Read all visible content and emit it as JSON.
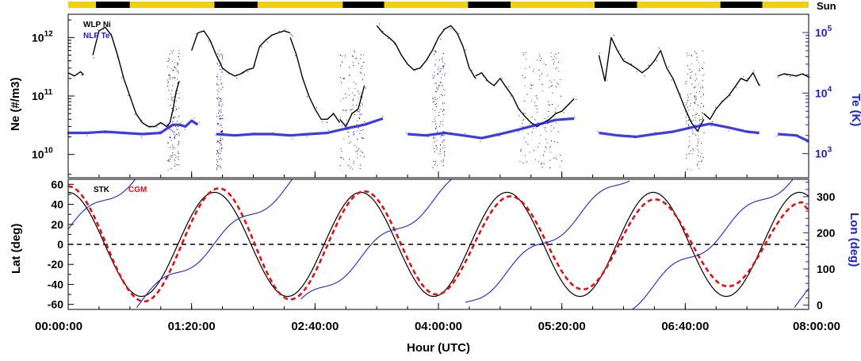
{
  "colors": {
    "ni": "#000000",
    "te": "#1a1adb",
    "stk": "#000000",
    "cgm": "#e01010",
    "lon": "#2222cc",
    "sun_day": "#f2d10a",
    "sun_night": "#000000"
  },
  "sun_bar": {
    "label": "Sun",
    "segments": [
      {
        "start": 0.0,
        "end": 0.45,
        "state": "day"
      },
      {
        "start": 0.45,
        "end": 1.0,
        "state": "night"
      },
      {
        "start": 1.0,
        "end": 2.37,
        "state": "day"
      },
      {
        "start": 2.37,
        "end": 3.07,
        "state": "night"
      },
      {
        "start": 3.07,
        "end": 4.45,
        "state": "day"
      },
      {
        "start": 4.45,
        "end": 5.12,
        "state": "night"
      },
      {
        "start": 5.12,
        "end": 6.48,
        "state": "day"
      },
      {
        "start": 6.48,
        "end": 7.17,
        "state": "night"
      },
      {
        "start": 7.17,
        "end": 8.53,
        "state": "day"
      },
      {
        "start": 8.53,
        "end": 9.22,
        "state": "night"
      },
      {
        "start": 9.22,
        "end": 10.57,
        "state": "day"
      },
      {
        "start": 10.57,
        "end": 11.25,
        "state": "night"
      },
      {
        "start": 11.25,
        "end": 12.0,
        "state": "day"
      }
    ]
  },
  "chart_data": [
    {
      "type": "scatter",
      "ylabel": "Ne (#/m3)",
      "y2label": "Te (K)",
      "yscale": "log",
      "ylim": [
        4000000000.0,
        2500000000000.0
      ],
      "y2lim": [
        400,
        200000
      ],
      "y_ticks": [
        {
          "exp": "10",
          "pow": "10",
          "value": 10000000000.0
        },
        {
          "exp": "10",
          "pow": "11",
          "value": 100000000000.0
        },
        {
          "exp": "10",
          "pow": "12",
          "value": 1000000000000.0
        }
      ],
      "y2_ticks": [
        {
          "exp": "10",
          "pow": "3",
          "value": 1000
        },
        {
          "exp": "10",
          "pow": "4",
          "value": 10000
        },
        {
          "exp": "10",
          "pow": "5",
          "value": 100000
        }
      ],
      "legend": [
        "WLP Ni",
        "NLP Te"
      ],
      "series": [
        {
          "name": "WLP Ni",
          "axis": "left",
          "color": "#000000",
          "segments": [
            {
              "x": [
                0.0,
                0.1,
                0.2,
                0.25
              ],
              "y": [
                250000000000.0,
                220000000000.0,
                260000000000.0,
                230000000000.0
              ]
            },
            {
              "x": [
                0.4,
                0.5,
                0.6,
                0.7,
                0.8,
                0.9,
                1.0,
                1.1,
                1.2,
                1.3,
                1.4,
                1.5,
                1.6,
                1.65,
                1.7,
                1.75,
                1.8
              ],
              "y": [
                500000000000.0,
                1300000000000.0,
                1500000000000.0,
                1100000000000.0,
                500000000000.0,
                200000000000.0,
                100000000000.0,
                50000000000.0,
                35000000000.0,
                30000000000.0,
                30000000000.0,
                35000000000.0,
                30000000000.0,
                35000000000.0,
                60000000000.0,
                120000000000.0,
                180000000000.0
              ]
            },
            {
              "x": [
                2.0,
                2.1,
                2.2,
                2.3,
                2.4,
                2.5,
                2.6,
                2.7,
                2.8,
                2.9,
                3.0,
                3.1,
                3.2,
                3.3,
                3.4,
                3.5,
                3.6
              ],
              "y": [
                600000000000.0,
                1200000000000.0,
                1300000000000.0,
                900000000000.0,
                500000000000.0,
                300000000000.0,
                250000000000.0,
                220000000000.0,
                240000000000.0,
                280000000000.0,
                300000000000.0,
                700000000000.0,
                900000000000.0,
                1100000000000.0,
                1200000000000.0,
                1300000000000.0,
                1200000000000.0
              ]
            },
            {
              "x": [
                3.6,
                3.7,
                3.8,
                3.9,
                4.0,
                4.1,
                4.2,
                4.3,
                4.4
              ],
              "y": [
                1000000000000.0,
                500000000000.0,
                200000000000.0,
                100000000000.0,
                60000000000.0,
                40000000000.0,
                40000000000.0,
                50000000000.0,
                35000000000.0
              ]
            },
            {
              "x": [
                4.4,
                4.5,
                4.6,
                4.7,
                4.8
              ],
              "y": [
                40000000000.0,
                30000000000.0,
                50000000000.0,
                60000000000.0,
                150000000000.0
              ]
            },
            {
              "x": [
                5.0,
                5.1,
                5.2,
                5.3,
                5.4,
                5.5,
                5.6,
                5.7,
                5.8,
                5.9,
                6.0,
                6.1,
                6.2,
                6.3,
                6.4,
                6.5,
                6.6
              ],
              "y": [
                1600000000000.0,
                1200000000000.0,
                1000000000000.0,
                800000000000.0,
                500000000000.0,
                350000000000.0,
                280000000000.0,
                300000000000.0,
                400000000000.0,
                600000000000.0,
                1000000000000.0,
                1400000000000.0,
                1600000000000.0,
                1200000000000.0,
                700000000000.0,
                300000000000.0,
                200000000000.0
              ]
            },
            {
              "x": [
                6.6,
                6.7,
                6.8,
                6.9,
                7.0,
                7.1,
                7.2,
                7.3,
                7.4,
                7.5,
                7.6,
                7.7,
                7.8,
                7.9,
                8.0,
                8.1,
                8.2
              ],
              "y": [
                220000000000.0,
                250000000000.0,
                180000000000.0,
                150000000000.0,
                200000000000.0,
                140000000000.0,
                100000000000.0,
                60000000000.0,
                45000000000.0,
                35000000000.0,
                30000000000.0,
                35000000000.0,
                40000000000.0,
                50000000000.0,
                55000000000.0,
                70000000000.0,
                90000000000.0
              ]
            },
            {
              "x": [
                8.6,
                8.7,
                8.8,
                8.9,
                9.0,
                9.1,
                9.2,
                9.3,
                9.4,
                9.5,
                9.6,
                9.7,
                9.8,
                9.9,
                10.0,
                10.1,
                10.2,
                10.3
              ],
              "y": [
                500000000000.0,
                180000000000.0,
                1000000000000.0,
                600000000000.0,
                400000000000.0,
                350000000000.0,
                300000000000.0,
                250000000000.0,
                300000000000.0,
                400000000000.0,
                600000000000.0,
                300000000000.0,
                200000000000.0,
                110000000000.0,
                60000000000.0,
                35000000000.0,
                25000000000.0,
                40000000000.0
              ]
            },
            {
              "x": [
                10.3,
                10.4,
                10.5,
                10.6,
                10.7,
                10.8,
                10.9,
                11.0,
                11.1,
                11.2
              ],
              "y": [
                50000000000.0,
                40000000000.0,
                60000000000.0,
                80000000000.0,
                100000000000.0,
                140000000000.0,
                200000000000.0,
                180000000000.0,
                250000000000.0,
                150000000000.0
              ]
            },
            {
              "x": [
                11.5,
                11.6,
                11.7,
                11.8,
                11.9,
                12.0
              ],
              "y": [
                220000000000.0,
                240000000000.0,
                230000000000.0,
                220000000000.0,
                240000000000.0,
                210000000000.0
              ]
            }
          ]
        },
        {
          "name": "NLP Te",
          "axis": "right",
          "color": "#1a1adb",
          "segments": [
            {
              "x": [
                0.0,
                0.3,
                0.6,
                0.9,
                1.2,
                1.5,
                1.6,
                1.7,
                1.8,
                1.9,
                2.0,
                2.1
              ],
              "y": [
                2200,
                2200,
                2300,
                2200,
                2100,
                2200,
                2600,
                3000,
                3000,
                2800,
                3500,
                3000
              ]
            },
            {
              "x": [
                2.4,
                2.7,
                3.0,
                3.3,
                3.6,
                3.9,
                4.2,
                4.5,
                4.8,
                5.1
              ],
              "y": [
                2100,
                2000,
                2100,
                2100,
                2000,
                2100,
                2200,
                2600,
                3000,
                3800
              ]
            },
            {
              "x": [
                5.5,
                5.8,
                6.1,
                6.4,
                6.7,
                7.0,
                7.3,
                7.6,
                7.9,
                8.2
              ],
              "y": [
                2100,
                2000,
                2200,
                2000,
                1800,
                2100,
                2500,
                3000,
                3600,
                3800
              ]
            },
            {
              "x": [
                8.6,
                8.9,
                9.2,
                9.5,
                9.8,
                10.1,
                10.4,
                10.7,
                11.0,
                11.2
              ],
              "y": [
                2200,
                2000,
                1900,
                2100,
                2300,
                2700,
                3100,
                2700,
                2300,
                2200
              ]
            },
            {
              "x": [
                11.5,
                11.8,
                12.0
              ],
              "y": [
                2100,
                2000,
                1600
              ]
            }
          ]
        }
      ],
      "noise_bands": [
        {
          "x0": 1.6,
          "x1": 1.8
        },
        {
          "x0": 2.4,
          "x1": 2.5
        },
        {
          "x0": 4.4,
          "x1": 4.8
        },
        {
          "x0": 5.9,
          "x1": 6.1
        },
        {
          "x0": 7.3,
          "x1": 8.0
        },
        {
          "x0": 10.0,
          "x1": 10.3
        }
      ]
    },
    {
      "type": "line",
      "xlabel": "Hour (UTC)",
      "ylabel": "Lat (deg)",
      "y2label": "Lon (deg)",
      "xlim": [
        0,
        8
      ],
      "ylim": [
        -65,
        65
      ],
      "y2lim": [
        -12,
        348
      ],
      "x_ticks": [
        {
          "value": 0,
          "label": "00:00:00"
        },
        {
          "value": 1.3333,
          "label": "01:20:00"
        },
        {
          "value": 2.6667,
          "label": "02:40:00"
        },
        {
          "value": 4,
          "label": "04:00:00"
        },
        {
          "value": 5.3333,
          "label": "05:20:00"
        },
        {
          "value": 6.6667,
          "label": "06:40:00"
        },
        {
          "value": 8,
          "label": "08:00:00"
        }
      ],
      "y_ticks": [
        -60,
        -40,
        -20,
        0,
        20,
        40,
        60
      ],
      "y2_ticks": [
        0,
        100,
        200,
        300
      ],
      "legend": [
        "STK",
        "CGM"
      ],
      "zero_line": true,
      "series": [
        {
          "name": "STK",
          "axis": "left",
          "color": "#000000",
          "style": "solid",
          "model": {
            "kind": "sine",
            "amplitude": 52,
            "period_h": 1.58,
            "peak_x": 0.0
          }
        },
        {
          "name": "CGM",
          "axis": "left",
          "color": "#e01010",
          "style": "dashed",
          "peaks": [
            {
              "x": 0.0,
              "y": 58
            },
            {
              "x": 1.63,
              "y": 56
            },
            {
              "x": 3.2,
              "y": 53
            },
            {
              "x": 4.78,
              "y": 48
            },
            {
              "x": 6.34,
              "y": 45
            },
            {
              "x": 7.93,
              "y": 42
            }
          ],
          "troughs": [
            {
              "x": 0.82,
              "y": -57
            },
            {
              "x": 2.4,
              "y": -55
            },
            {
              "x": 3.98,
              "y": -50
            },
            {
              "x": 5.56,
              "y": -45
            },
            {
              "x": 7.13,
              "y": -42
            }
          ]
        },
        {
          "name": "Lon",
          "axis": "right",
          "color": "#2222cc",
          "style": "solid",
          "model": {
            "kind": "longitude",
            "start_x": 0.0,
            "start_lon": 210,
            "rate_deg_per_h": 202.8,
            "wrap": 360
          }
        }
      ]
    }
  ]
}
